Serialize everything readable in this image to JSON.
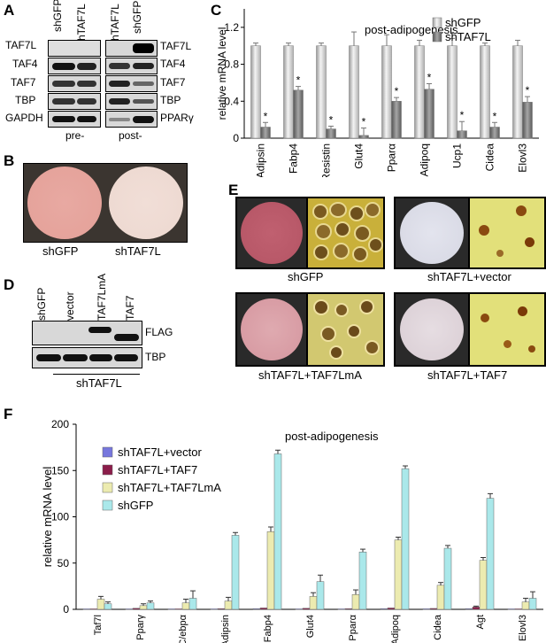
{
  "panelA": {
    "letter": "A",
    "lanes": [
      "shGFP",
      "shTAF7L",
      "shTAF7L",
      "shGFP"
    ],
    "left_rows": [
      "TAF7L",
      "TAF4",
      "TAF7",
      "TBP",
      "GAPDH"
    ],
    "right_rows": [
      "TAF7L",
      "TAF4",
      "TAF7",
      "TBP",
      "PPARγ"
    ],
    "group_pre": "pre-",
    "group_post": "post-"
  },
  "panelB": {
    "letter": "B",
    "labels": [
      "shGFP",
      "shTAF7L"
    ]
  },
  "panelC": {
    "letter": "C",
    "title": "post-adipogenesis",
    "ylabel": "relative mRNA level",
    "legend": [
      "shGFP",
      "shTAF7L"
    ],
    "star": "*",
    "chart_data": {
      "type": "bar",
      "title": "post-adipogenesis",
      "ylabel": "relative mRNA level",
      "ylim": [
        0,
        1.4
      ],
      "yticks": [
        "0",
        "0.4",
        "0.8",
        "1.2"
      ],
      "categories": [
        "Adipsin",
        "Fabp4",
        "Resistin",
        "Glut4",
        "Pparα",
        "Adipoq",
        "Ucp1",
        "Cidea",
        "Elovl3"
      ],
      "series": [
        {
          "name": "shGFP",
          "values": [
            1,
            1,
            1,
            1,
            1,
            1,
            1,
            1,
            1
          ]
        },
        {
          "name": "shTAF7L",
          "values": [
            0.12,
            0.52,
            0.1,
            0.03,
            0.4,
            0.53,
            0.08,
            0.12,
            0.39
          ]
        }
      ]
    }
  },
  "panelD": {
    "letter": "D",
    "lanes": [
      "shGFP",
      "vector",
      "TAF7LmA",
      "TAF7"
    ],
    "rows": [
      "FLAG",
      "TBP"
    ],
    "group": "shTAF7L"
  },
  "panelE": {
    "letter": "E",
    "labels": [
      "shGFP",
      "shTAF7L+vector",
      "shTAF7L+TAF7LmA",
      "shTAF7L+TAF7"
    ]
  },
  "panelF": {
    "letter": "F",
    "title": "post-adipogenesis",
    "ylabel": "relative mRNA level",
    "chart_data": {
      "type": "bar",
      "title": "post-adipogenesis",
      "ylabel": "relative mRNA level",
      "ylim": [
        0,
        200
      ],
      "yticks": [
        "0",
        "50",
        "100",
        "150",
        "200"
      ],
      "categories": [
        "Taf7l",
        "Pparγ",
        "C/ebpα",
        "Adipsin",
        "Fabp4",
        "Glut4",
        "Pparα",
        "Adipoq",
        "Cidea",
        "Agt",
        "Elovl3"
      ],
      "series": [
        {
          "name": "shTAF7L+vector",
          "color": "#7777dd",
          "values": [
            0.5,
            0.5,
            0.5,
            0.5,
            0.8,
            0.5,
            0.5,
            0.8,
            0.6,
            0.8,
            0.5
          ]
        },
        {
          "name": "shTAF7L+TAF7",
          "color": "#8b1d4a",
          "values": [
            0.5,
            1.2,
            0.5,
            0.8,
            1.5,
            1.2,
            0.8,
            1.5,
            1,
            2.5,
            0.5
          ]
        },
        {
          "name": "shTAF7L+TAF7LmA",
          "color": "#ecebb0",
          "values": [
            11,
            4,
            7,
            9,
            84,
            14,
            16,
            75,
            26,
            53,
            8
          ]
        },
        {
          "name": "shGFP",
          "color": "#aae8ea",
          "values": [
            6,
            7,
            12,
            80,
            168,
            30,
            62,
            152,
            66,
            120,
            12
          ]
        }
      ]
    }
  }
}
